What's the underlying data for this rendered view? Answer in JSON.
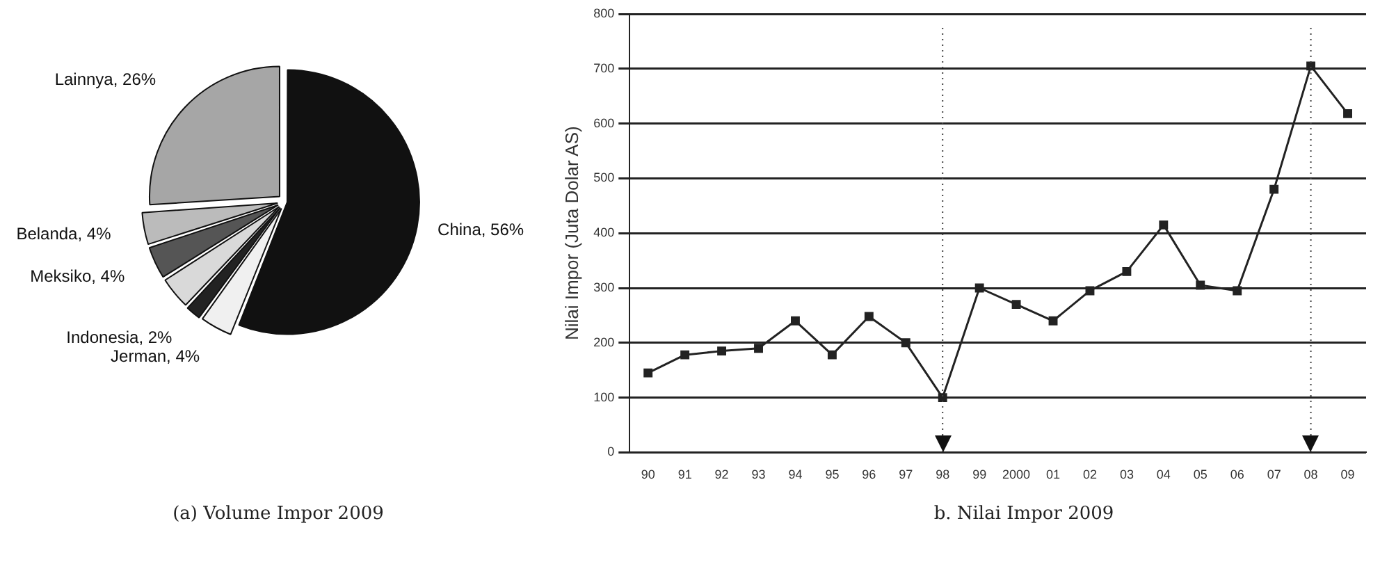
{
  "chart_data": [
    {
      "type": "pie",
      "title": "(a) Volume Impor 2009",
      "categories": [
        "China",
        "Jerman",
        "Indonesia",
        null,
        "Meksiko",
        "Belanda",
        "Lainnya"
      ],
      "values": [
        56,
        4,
        2,
        4,
        4,
        4,
        26
      ],
      "value_labels": [
        "56%",
        "4%",
        "2%",
        null,
        "4%",
        "4%",
        "26%"
      ],
      "colors": [
        "#111111",
        "#f0f0f0",
        "#222222",
        "#d9d9d9",
        "#555555",
        "#bbbbbb",
        "#a6a6a6"
      ],
      "legend": false
    },
    {
      "type": "line",
      "title": "b. Nilai Impor 2009",
      "ylabel": "Nilai Impor (Juta Dolar AS)",
      "categories": [
        "90",
        "91",
        "92",
        "93",
        "94",
        "95",
        "96",
        "97",
        "98",
        "99",
        "2000",
        "01",
        "02",
        "03",
        "04",
        "05",
        "06",
        "07",
        "08",
        "09"
      ],
      "series": [
        {
          "color": "#222222",
          "values": [
            145,
            178,
            185,
            190,
            240,
            178,
            248,
            200,
            100,
            300,
            270,
            240,
            295,
            330,
            415,
            305,
            295,
            480,
            705,
            618
          ]
        }
      ],
      "ylim": [
        0,
        800
      ],
      "yticks": [
        0,
        100,
        200,
        300,
        400,
        500,
        600,
        700,
        800
      ],
      "grid": "y",
      "marker": "square",
      "line_style": "solid",
      "legend": false,
      "ref_lines": [
        {
          "axis": "x",
          "value": "98",
          "line_style": "dotted"
        },
        {
          "axis": "x",
          "value": "08",
          "line_style": "dotted"
        }
      ]
    }
  ]
}
